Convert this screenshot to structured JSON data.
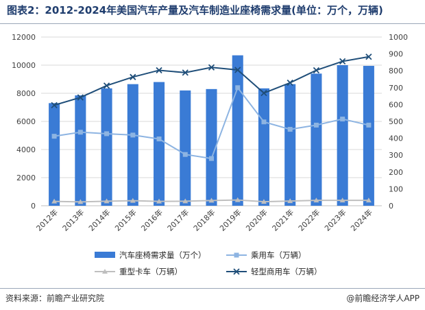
{
  "header": {
    "title": "图表2：2012-2024年美国汽车产量及汽车制造业座椅需求量(单位：万个，万辆)"
  },
  "footer": {
    "source": "资料来源：前瞻产业研究院",
    "brand": "@前瞻经济学人APP"
  },
  "colors": {
    "bar": "#3a7bd5",
    "passenger": "#8db4e2",
    "heavy": "#bfbfbf",
    "light": "#1f4e79",
    "axis_text": "#404040",
    "grid": "#d9d9d9"
  },
  "chart_data": {
    "type": "bar",
    "title": "",
    "categories": [
      "2012年",
      "2013年",
      "2014年",
      "2015年",
      "2016年",
      "2017年",
      "2018年",
      "2019年",
      "2020年",
      "2021年",
      "2022年",
      "2023年",
      "2024年"
    ],
    "y_left": {
      "range": [
        0,
        12000
      ],
      "ticks": [
        "0",
        "2000",
        "4000",
        "6000",
        "8000",
        "10000",
        "12000"
      ]
    },
    "y_right": {
      "range": [
        0,
        1000
      ],
      "ticks": [
        "0",
        "100",
        "200",
        "300",
        "400",
        "500",
        "600",
        "700",
        "800",
        "900",
        "1000"
      ]
    },
    "series": [
      {
        "name": "汽车座椅需求量（万个）",
        "type": "bar",
        "axis": "left",
        "values": [
          7300,
          7850,
          8350,
          8650,
          8800,
          8200,
          8300,
          10700,
          8350,
          8650,
          9400,
          10000,
          9950
        ]
      },
      {
        "name": "乘用车（万辆）",
        "type": "line",
        "axis": "right",
        "marker": "square",
        "values": [
          412,
          436,
          427,
          419,
          396,
          304,
          280,
          700,
          497,
          453,
          478,
          514,
          478
        ]
      },
      {
        "name": "重型卡车（万辆）",
        "type": "line",
        "axis": "right",
        "marker": "triangle",
        "values": [
          26,
          23,
          27,
          30,
          26,
          27,
          31,
          34,
          24,
          28,
          32,
          32,
          32
        ]
      },
      {
        "name": "轻型商用车（万辆）",
        "type": "line",
        "axis": "right",
        "marker": "x",
        "values": [
          596,
          642,
          712,
          763,
          803,
          789,
          820,
          805,
          668,
          729,
          803,
          856,
          883
        ]
      }
    ],
    "legend_position": "bottom"
  }
}
